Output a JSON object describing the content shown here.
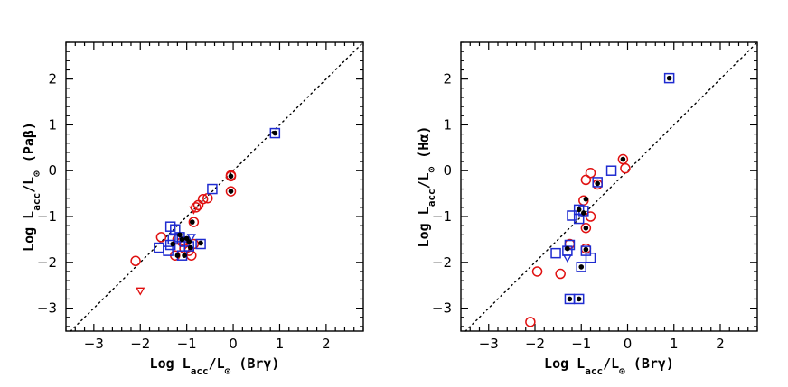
{
  "colors": {
    "red": "#e01010",
    "blue": "#1e2bd0",
    "black": "#000000"
  },
  "chart_data": [
    {
      "type": "scatter",
      "title": "",
      "xlabel_parts": [
        "Log L",
        "acc",
        "/L",
        "⊙",
        " (Brγ)"
      ],
      "ylabel_parts": [
        "Log L",
        "acc",
        "/L",
        "⊙",
        " (Paβ)"
      ],
      "xlim": [
        -3.6,
        2.8
      ],
      "ylim": [
        -3.5,
        2.8
      ],
      "xticks": [
        -3,
        -2,
        -1,
        0,
        1,
        2
      ],
      "yticks": [
        -3,
        -2,
        -1,
        0,
        1,
        2
      ],
      "xtick_labels": [
        "−3",
        "−2",
        "−1",
        "0",
        "1",
        "2"
      ],
      "ytick_labels": [
        "−3",
        "−2",
        "−1",
        "0",
        "1",
        "2"
      ],
      "one_to_one_line": true,
      "series": [
        {
          "name": "red-circles",
          "marker": "circle",
          "color": "red",
          "points": [
            [
              -2.1,
              -1.97
            ],
            [
              -1.55,
              -1.45
            ],
            [
              -1.25,
              -1.85
            ],
            [
              -1.2,
              -1.5
            ],
            [
              -1.1,
              -1.55
            ],
            [
              -1.05,
              -1.7
            ],
            [
              -0.95,
              -1.75
            ],
            [
              -0.9,
              -1.85
            ],
            [
              -0.85,
              -1.6
            ],
            [
              -0.85,
              -1.12
            ],
            [
              -0.8,
              -0.8
            ],
            [
              -0.75,
              -0.75
            ],
            [
              -0.65,
              -0.62
            ],
            [
              -0.55,
              -0.6
            ],
            [
              -0.05,
              -0.45
            ],
            [
              -0.05,
              -0.1
            ],
            [
              -0.05,
              -0.12
            ]
          ]
        },
        {
          "name": "blue-squares",
          "marker": "square",
          "color": "blue",
          "points": [
            [
              -1.6,
              -1.68
            ],
            [
              -1.4,
              -1.75
            ],
            [
              -1.35,
              -1.62
            ],
            [
              -1.35,
              -1.22
            ],
            [
              -1.3,
              -1.5
            ],
            [
              -1.25,
              -1.28
            ],
            [
              -1.15,
              -1.45
            ],
            [
              -1.1,
              -1.85
            ],
            [
              -1.05,
              -1.55
            ],
            [
              -0.95,
              -1.65
            ],
            [
              -0.7,
              -1.6
            ],
            [
              -0.45,
              -0.4
            ],
            [
              0.9,
              0.82
            ]
          ]
        },
        {
          "name": "black-dots",
          "marker": "dot",
          "color": "black",
          "points": [
            [
              -1.3,
              -1.6
            ],
            [
              -1.2,
              -1.85
            ],
            [
              -1.15,
              -1.4
            ],
            [
              -1.1,
              -1.5
            ],
            [
              -1.05,
              -1.85
            ],
            [
              -1.0,
              -1.48
            ],
            [
              -0.95,
              -1.55
            ],
            [
              -0.92,
              -1.68
            ],
            [
              -0.88,
              -1.12
            ],
            [
              -0.7,
              -1.58
            ],
            [
              -0.05,
              -0.45
            ],
            [
              -0.05,
              -0.12
            ],
            [
              0.9,
              0.82
            ]
          ]
        },
        {
          "name": "red-upper-limits",
          "marker": "triangle-down",
          "color": "red",
          "points": [
            [
              -2.0,
              -2.62
            ],
            [
              -0.85,
              -0.85
            ]
          ]
        },
        {
          "name": "blue-upper-limits",
          "marker": "triangle-down",
          "color": "blue",
          "points": [
            [
              -0.9,
              -1.45
            ]
          ]
        }
      ]
    },
    {
      "type": "scatter",
      "title": "",
      "xlabel_parts": [
        "Log L",
        "acc",
        "/L",
        "⊙",
        " (Brγ)"
      ],
      "ylabel_parts": [
        "Log L",
        "acc",
        "/L",
        "⊙",
        " (Hα)"
      ],
      "xlim": [
        -3.6,
        2.8
      ],
      "ylim": [
        -3.5,
        2.8
      ],
      "xticks": [
        -3,
        -2,
        -1,
        0,
        1,
        2
      ],
      "yticks": [
        -3,
        -2,
        -1,
        0,
        1,
        2
      ],
      "xtick_labels": [
        "−3",
        "−2",
        "−1",
        "0",
        "1",
        "2"
      ],
      "ytick_labels": [
        "−3",
        "−2",
        "−1",
        "0",
        "1",
        "2"
      ],
      "one_to_one_line": true,
      "series": [
        {
          "name": "red-circles",
          "marker": "circle",
          "color": "red",
          "points": [
            [
              -2.1,
              -3.3
            ],
            [
              -1.95,
              -2.2
            ],
            [
              -1.45,
              -2.25
            ],
            [
              -1.25,
              -1.6
            ],
            [
              -0.9,
              -1.25
            ],
            [
              -0.95,
              -0.65
            ],
            [
              -0.9,
              -1.7
            ],
            [
              -0.9,
              -0.2
            ],
            [
              -0.8,
              -0.05
            ],
            [
              -0.8,
              -1.0
            ],
            [
              -0.65,
              -0.3
            ],
            [
              -0.1,
              0.25
            ],
            [
              -0.05,
              0.05
            ]
          ]
        },
        {
          "name": "blue-squares",
          "marker": "square",
          "color": "blue",
          "points": [
            [
              -1.55,
              -1.8
            ],
            [
              -1.3,
              -1.75
            ],
            [
              -1.25,
              -1.62
            ],
            [
              -1.25,
              -2.8
            ],
            [
              -1.2,
              -0.98
            ],
            [
              -1.05,
              -0.85
            ],
            [
              -1.05,
              -1.05
            ],
            [
              -1.05,
              -2.8
            ],
            [
              -1.0,
              -2.1
            ],
            [
              -0.95,
              -0.88
            ],
            [
              -0.9,
              -1.75
            ],
            [
              -0.8,
              -1.9
            ],
            [
              -0.65,
              -0.25
            ],
            [
              -0.35,
              0.0
            ],
            [
              0.9,
              2.02
            ]
          ]
        },
        {
          "name": "black-dots",
          "marker": "dot",
          "color": "black",
          "points": [
            [
              -1.3,
              -1.7
            ],
            [
              -1.25,
              -2.8
            ],
            [
              -1.05,
              -0.85
            ],
            [
              -1.05,
              -2.8
            ],
            [
              -1.0,
              -2.1
            ],
            [
              -0.95,
              -0.92
            ],
            [
              -0.9,
              -0.62
            ],
            [
              -0.9,
              -1.25
            ],
            [
              -0.9,
              -1.72
            ],
            [
              -0.65,
              -0.28
            ],
            [
              -0.1,
              0.25
            ],
            [
              0.9,
              2.02
            ]
          ]
        },
        {
          "name": "blue-upper-limits",
          "marker": "triangle-down",
          "color": "blue",
          "points": [
            [
              -1.3,
              -1.9
            ]
          ]
        }
      ]
    }
  ]
}
